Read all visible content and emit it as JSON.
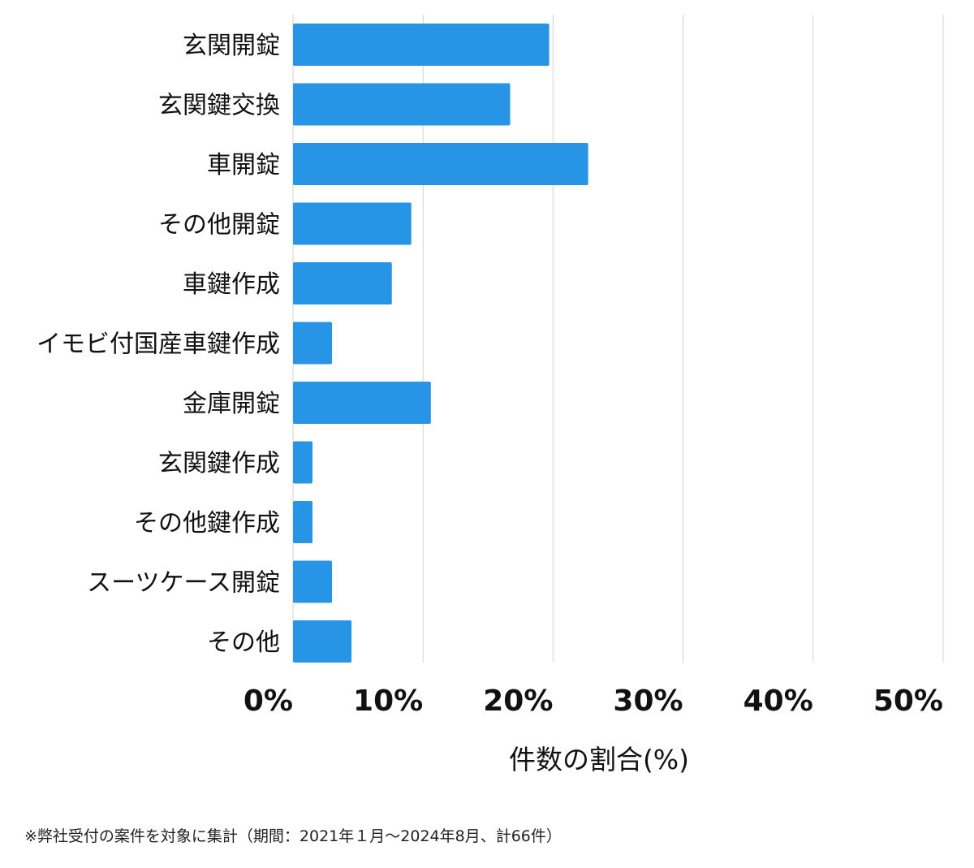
{
  "chart_data": {
    "type": "bar",
    "orientation": "horizontal",
    "categories": [
      "玄関開錠",
      "玄関鍵交換",
      "車開錠",
      "その他開錠",
      "車鍵作成",
      "イモビ付国産車鍵作成",
      "金庫開錠",
      "玄関鍵作成",
      "その他鍵作成",
      "スーツケース開錠",
      "その他"
    ],
    "values": [
      19.7,
      16.7,
      22.7,
      9.1,
      7.6,
      3.0,
      10.6,
      1.5,
      1.5,
      3.0,
      4.5
    ],
    "xlabel": "件数の割合(%)",
    "ylabel": "",
    "xlim": [
      0,
      50
    ],
    "xticks": [
      0,
      10,
      20,
      30,
      40,
      50
    ],
    "xtick_labels": [
      "0%",
      "10%",
      "20%",
      "30%",
      "40%",
      "50%"
    ],
    "grid": "vertical",
    "bar_color": "#2894e6",
    "grid_color": "#d0d0d0"
  },
  "footnote": "※弊社受付の案件を対象に集計（期間：2021年１月〜2024年8月、計66件）"
}
